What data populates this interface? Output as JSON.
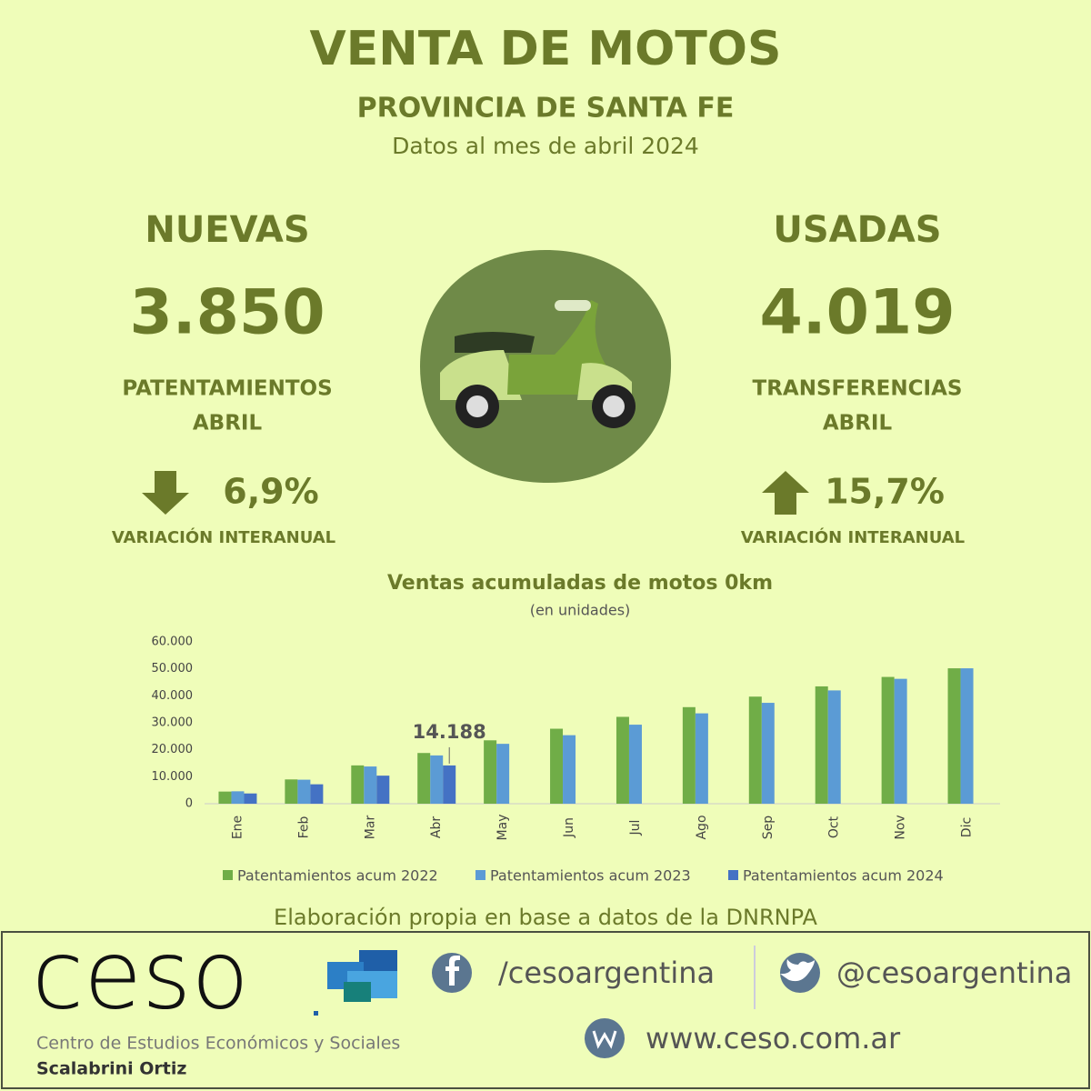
{
  "header": {
    "title": "VENTA DE MOTOS",
    "subtitle": "PROVINCIA DE SANTA FE",
    "date": "Datos al mes de abril 2024"
  },
  "nuevas": {
    "heading": "NUEVAS",
    "value": "3.850",
    "label1": "PATENTAMIENTOS",
    "label2": "ABRIL",
    "variation": "6,9%",
    "variation_label": "VARIACIÓN INTERANUAL"
  },
  "usadas": {
    "heading": "USADAS",
    "value": "4.019",
    "label1": "TRANSFERENCIAS",
    "label2": "ABRIL",
    "variation": "15,7%",
    "variation_label": "VARIACIÓN INTERANUAL"
  },
  "chart_data": {
    "type": "bar",
    "title": "Ventas acumuladas de motos 0km",
    "subtitle": "(en unidades)",
    "categories": [
      "Ene",
      "Feb",
      "Mar",
      "Abr",
      "May",
      "Jun",
      "Jul",
      "Ago",
      "Sep",
      "Oct",
      "Nov",
      "Dic"
    ],
    "series": [
      {
        "name": "Patentamientos acum 2022",
        "color": "#70ad47",
        "values": [
          4500,
          9000,
          14200,
          18800,
          23500,
          27800,
          32200,
          35800,
          39700,
          43500,
          47000,
          50200
        ]
      },
      {
        "name": "Patentamientos acum 2023",
        "color": "#5b9bd5",
        "values": [
          4600,
          8900,
          13800,
          17900,
          22200,
          25400,
          29300,
          33500,
          37400,
          42000,
          46300,
          50200
        ]
      },
      {
        "name": "Patentamientos acum 2024",
        "color": "#4472c4",
        "values": [
          3800,
          7200,
          10400,
          14188,
          null,
          null,
          null,
          null,
          null,
          null,
          null,
          null
        ],
        "value_labels": [
          null,
          null,
          null,
          "14.188",
          null,
          null,
          null,
          null,
          null,
          null,
          null,
          null
        ]
      }
    ],
    "ylim": [
      0,
      60000
    ],
    "yticks": [
      0,
      {
        "value": 10000,
        "label": "10.000"
      },
      {
        "value": 20000,
        "label": "20.000"
      },
      {
        "value": 30000,
        "label": "30.000"
      },
      {
        "value": 40000,
        "label": "40.000"
      },
      {
        "value": 50000,
        "label": "50.000"
      },
      {
        "value": 60000,
        "label": "60.000"
      }
    ],
    "legend": "bottom"
  },
  "source": "Elaboración propia en base a datos de la DNRNPA",
  "footer": {
    "logo": "ceso",
    "org": "Centro de Estudios Económicos y Sociales",
    "org2": "Scalabrini Ortiz",
    "facebook": "/cesoargentina",
    "twitter": "@cesoargentina",
    "web": "www.ceso.com.ar"
  }
}
